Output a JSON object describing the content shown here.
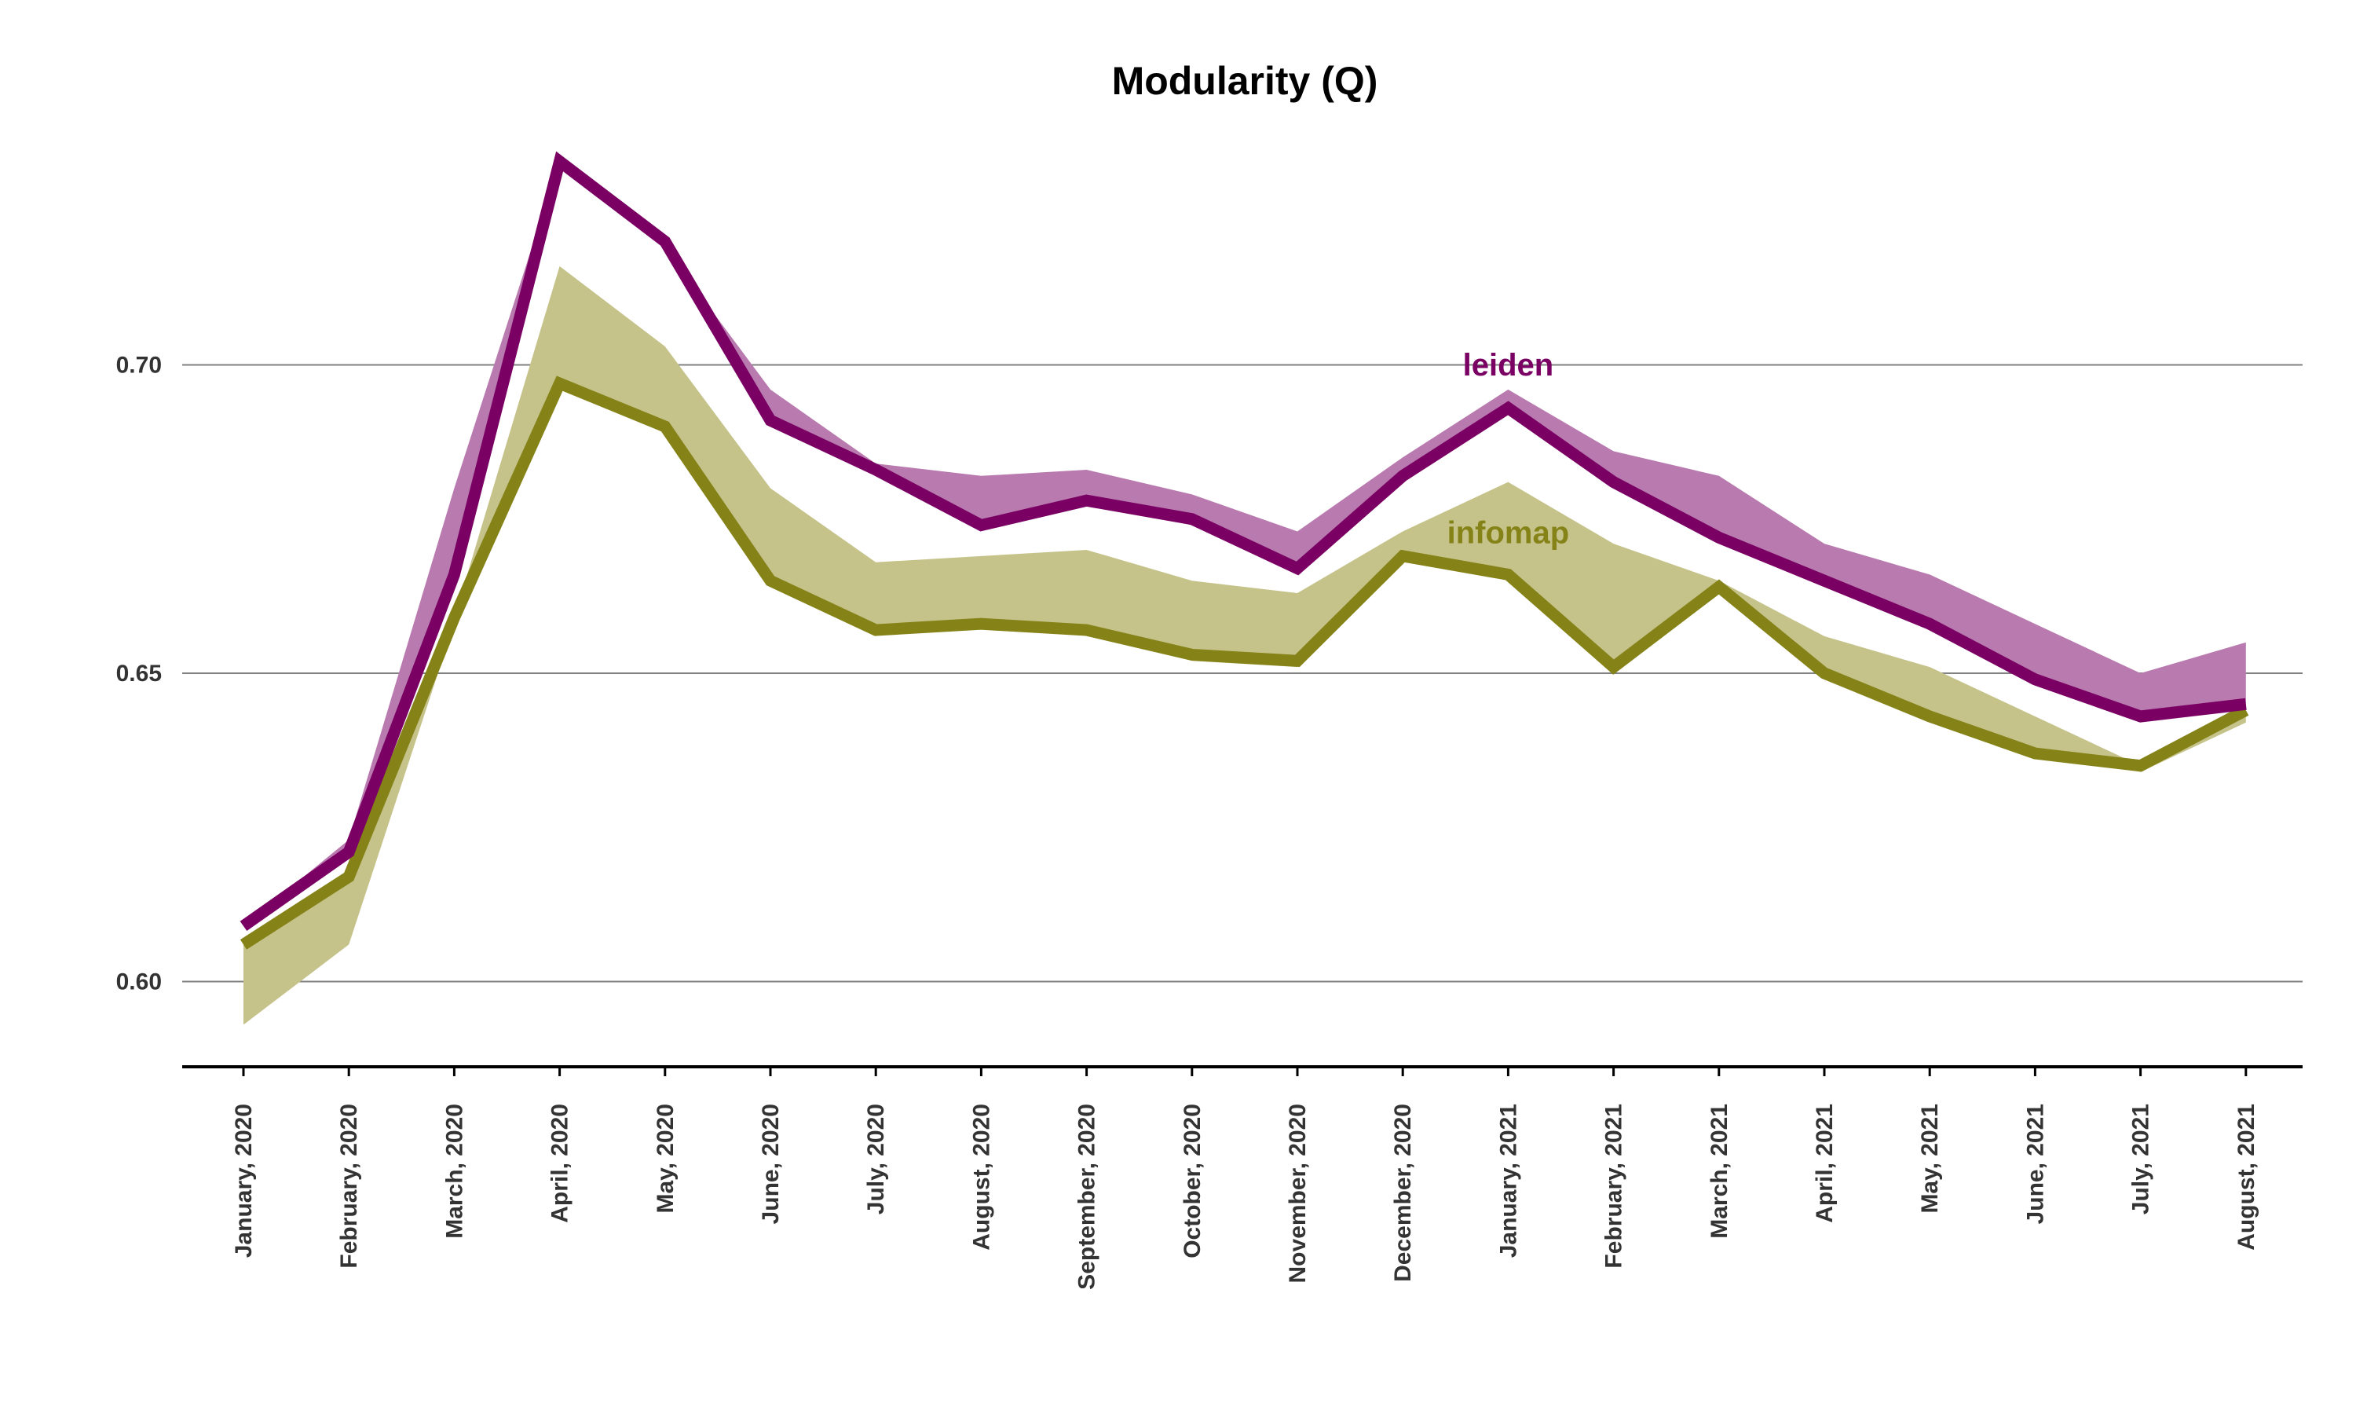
{
  "chart_data": {
    "type": "line",
    "title": "Modularity (Q)",
    "xlabel": "",
    "ylabel": "",
    "ylim": [
      0.586,
      0.7405
    ],
    "yticks": [
      0.6,
      0.65,
      0.7
    ],
    "ytick_labels": [
      "0.60",
      "0.65",
      "0.70"
    ],
    "grid": "horizontal",
    "categories": [
      "January, 2020",
      "February, 2020",
      "March, 2020",
      "April, 2020",
      "May, 2020",
      "June, 2020",
      "July, 2020",
      "August, 2020",
      "September, 2020",
      "October, 2020",
      "November, 2020",
      "December, 2020",
      "January, 2021",
      "February, 2021",
      "March, 2021",
      "April, 2021",
      "May, 2021",
      "June, 2021",
      "July, 2021",
      "August, 2021"
    ],
    "series": [
      {
        "name": "leiden",
        "color": "#7a0063",
        "band_color": "#b97aaf",
        "values": [
          0.609,
          0.621,
          0.666,
          0.733,
          0.72,
          0.691,
          0.683,
          0.674,
          0.678,
          0.675,
          0.667,
          0.682,
          0.693,
          0.681,
          0.672,
          0.665,
          0.658,
          0.649,
          0.643,
          0.645
        ],
        "band_upper": [
          0.609,
          0.623,
          0.68,
          0.733,
          0.719,
          0.696,
          0.684,
          0.682,
          0.683,
          0.679,
          0.673,
          0.685,
          0.696,
          0.686,
          0.682,
          0.671,
          0.666,
          0.658,
          0.65,
          0.655
        ],
        "band_lower": [
          0.609,
          0.62,
          0.664,
          0.733,
          0.72,
          0.69,
          0.682,
          0.674,
          0.678,
          0.674,
          0.666,
          0.681,
          0.692,
          0.68,
          0.671,
          0.664,
          0.657,
          0.648,
          0.642,
          0.644
        ]
      },
      {
        "name": "infomap",
        "color": "#858318",
        "band_color": "#c5c38a",
        "values": [
          0.606,
          0.617,
          0.659,
          0.697,
          0.69,
          0.665,
          0.657,
          0.658,
          0.657,
          0.653,
          0.652,
          0.669,
          0.666,
          0.651,
          0.664,
          0.65,
          0.643,
          0.637,
          0.635,
          0.644
        ],
        "band_upper": [
          0.606,
          0.617,
          0.659,
          0.716,
          0.703,
          0.68,
          0.668,
          0.669,
          0.67,
          0.665,
          0.663,
          0.673,
          0.681,
          0.671,
          0.665,
          0.656,
          0.651,
          0.643,
          0.635,
          0.643
        ],
        "band_lower": [
          0.593,
          0.606,
          0.658,
          0.697,
          0.689,
          0.665,
          0.657,
          0.658,
          0.657,
          0.652,
          0.651,
          0.669,
          0.665,
          0.651,
          0.663,
          0.649,
          0.643,
          0.637,
          0.634,
          0.642
        ]
      }
    ]
  }
}
